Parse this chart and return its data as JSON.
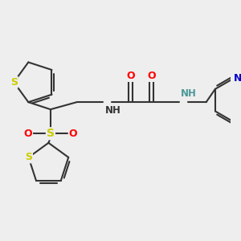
{
  "bg_color": "#eeeeee",
  "bond_color": "#333333",
  "line_width": 1.5,
  "figsize": [
    3.0,
    3.0
  ],
  "dpi": 100,
  "S_color": "#cccc00",
  "N_color_dark": "#333333",
  "NH_color": "#4d9999",
  "N_pyridine_color": "#0000cc",
  "O_color": "#ff0000",
  "xlim": [
    -0.5,
    5.2
  ],
  "ylim": [
    -2.2,
    1.8
  ]
}
